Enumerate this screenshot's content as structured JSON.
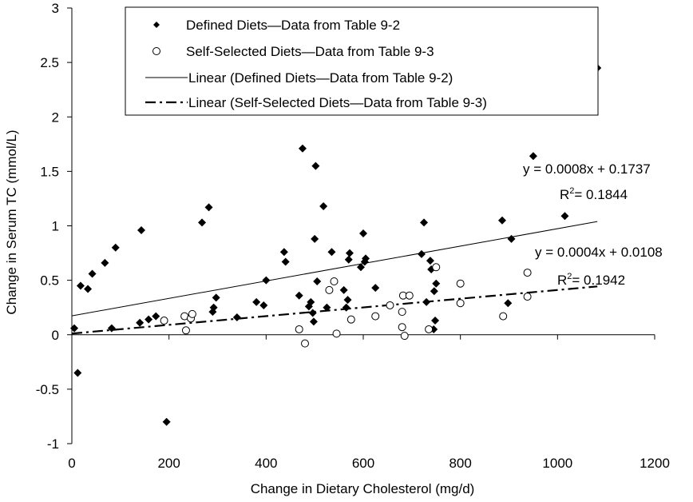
{
  "chart_data": {
    "type": "scatter",
    "xlabel": "Change in Dietary Cholesterol (mg/d)",
    "ylabel": "Change in Serum TC (mmol/L)",
    "xlim": [
      0,
      1200
    ],
    "ylim": [
      -1,
      3
    ],
    "xticks": [
      "0",
      "200",
      "400",
      "600",
      "800",
      "1000",
      "1200"
    ],
    "yticks": [
      "-1",
      "-0.5",
      "0",
      "0.5",
      "1",
      "1.5",
      "2",
      "2.5",
      "3"
    ],
    "grid": false,
    "legend_position": "top",
    "series": [
      {
        "name": "Defined Diets—Data from Table 9-2",
        "marker": "diamond-filled",
        "color": "#000000",
        "points": [
          [
            5,
            0.06
          ],
          [
            12,
            -0.35
          ],
          [
            18,
            0.45
          ],
          [
            33,
            0.42
          ],
          [
            42,
            0.56
          ],
          [
            68,
            0.66
          ],
          [
            82,
            0.06
          ],
          [
            90,
            0.8
          ],
          [
            140,
            0.11
          ],
          [
            143,
            0.96
          ],
          [
            158,
            0.14
          ],
          [
            173,
            0.17
          ],
          [
            195,
            -0.8
          ],
          [
            268,
            1.03
          ],
          [
            282,
            1.17
          ],
          [
            290,
            0.21
          ],
          [
            292,
            0.25
          ],
          [
            297,
            0.34
          ],
          [
            340,
            0.16
          ],
          [
            380,
            0.3
          ],
          [
            395,
            0.27
          ],
          [
            400,
            0.5
          ],
          [
            437,
            0.76
          ],
          [
            440,
            0.67
          ],
          [
            468,
            0.36
          ],
          [
            475,
            1.71
          ],
          [
            488,
            0.26
          ],
          [
            492,
            0.3
          ],
          [
            496,
            0.2
          ],
          [
            498,
            0.12
          ],
          [
            500,
            0.88
          ],
          [
            502,
            1.55
          ],
          [
            505,
            0.49
          ],
          [
            518,
            1.18
          ],
          [
            525,
            0.25
          ],
          [
            535,
            0.76
          ],
          [
            560,
            0.41
          ],
          [
            565,
            0.25
          ],
          [
            568,
            0.32
          ],
          [
            570,
            0.69
          ],
          [
            572,
            0.75
          ],
          [
            595,
            0.62
          ],
          [
            600,
            0.93
          ],
          [
            603,
            0.67
          ],
          [
            605,
            0.7
          ],
          [
            625,
            0.43
          ],
          [
            720,
            0.74
          ],
          [
            725,
            1.03
          ],
          [
            730,
            0.3
          ],
          [
            738,
            0.68
          ],
          [
            740,
            0.6
          ],
          [
            745,
            0.05
          ],
          [
            746,
            0.4
          ],
          [
            748,
            0.13
          ],
          [
            750,
            0.47
          ],
          [
            886,
            1.05
          ],
          [
            898,
            0.29
          ],
          [
            905,
            0.88
          ],
          [
            950,
            1.64
          ],
          [
            1015,
            1.09
          ],
          [
            1082,
            2.45
          ]
        ]
      },
      {
        "name": "Self-Selected Diets—Data from Table 9-3",
        "marker": "circle-open",
        "color": "#000000",
        "points": [
          [
            190,
            0.13
          ],
          [
            232,
            0.17
          ],
          [
            235,
            0.04
          ],
          [
            245,
            0.15
          ],
          [
            248,
            0.19
          ],
          [
            468,
            0.05
          ],
          [
            480,
            -0.08
          ],
          [
            530,
            0.41
          ],
          [
            540,
            0.49
          ],
          [
            545,
            0.01
          ],
          [
            575,
            0.14
          ],
          [
            625,
            0.17
          ],
          [
            655,
            0.27
          ],
          [
            680,
            0.21
          ],
          [
            680,
            0.07
          ],
          [
            682,
            0.36
          ],
          [
            685,
            -0.01
          ],
          [
            695,
            0.36
          ],
          [
            735,
            0.05
          ],
          [
            750,
            0.62
          ],
          [
            800,
            0.47
          ],
          [
            800,
            0.29
          ],
          [
            888,
            0.17
          ],
          [
            938,
            0.57
          ],
          [
            938,
            0.35
          ]
        ]
      }
    ],
    "trendlines": [
      {
        "name": "Linear (Defined Diets—Data from Table 9-2)",
        "style": "solid",
        "slope": 0.0008,
        "intercept": 0.1737,
        "x_range": [
          0,
          1082
        ],
        "equation": "y = 0.0008x + 0.1737",
        "r2_value": "= 0.1844"
      },
      {
        "name": "Linear (Self-Selected Diets—Data from Table 9-3)",
        "style": "dash-dot",
        "slope": 0.0004,
        "intercept": 0.0108,
        "x_range": [
          0,
          1082
        ],
        "equation": "y = 0.0004x + 0.0108",
        "r2_value": "= 0.1942"
      }
    ],
    "r2_label": "R",
    "r2_superscript": "2"
  }
}
